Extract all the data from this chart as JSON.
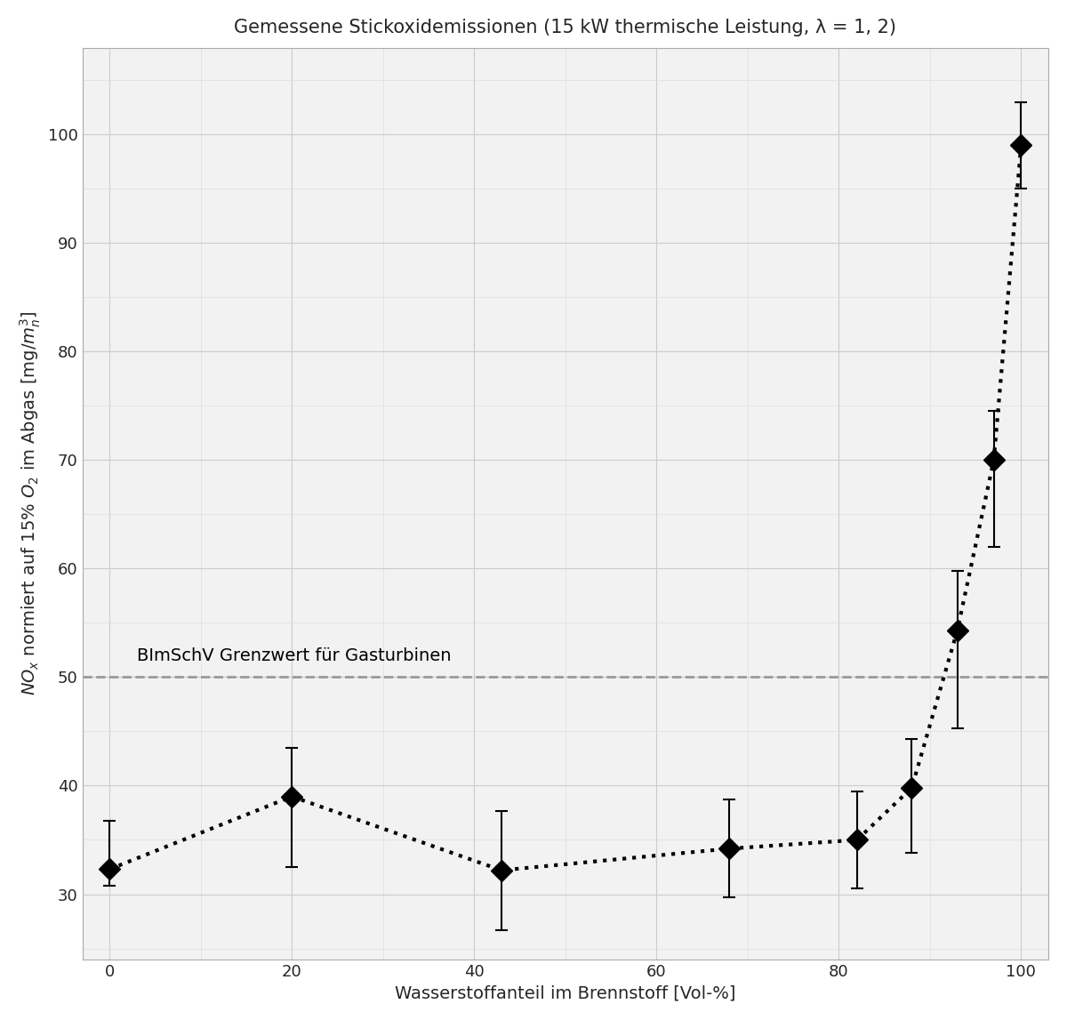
{
  "title": "Gemessene Stickoxidemissionen (15 kW thermische Leistung, λ = 1, 2)",
  "xlabel": "Wasserstoffanteil im Brennstoff [Vol-%]",
  "ylabel": "$NO_x$ normiert auf 15% $O_2$ im Abgas [mg/$m_n^3$]",
  "x": [
    0,
    20,
    43,
    68,
    82,
    88,
    93,
    97,
    100
  ],
  "y": [
    32.3,
    39.0,
    32.2,
    34.2,
    35.0,
    39.8,
    54.3,
    70.0,
    99.0
  ],
  "yerr_low": [
    1.5,
    6.5,
    5.5,
    4.5,
    4.5,
    6.0,
    9.0,
    8.0,
    4.0
  ],
  "yerr_high": [
    4.5,
    4.5,
    5.5,
    4.5,
    4.5,
    4.5,
    5.5,
    4.5,
    4.0
  ],
  "grenzwert_y": 50,
  "grenzwert_label": "BImSchV Grenzwert für Gasturbinen",
  "grenzwert_color": "#999999",
  "marker_color": "black",
  "line_color": "black",
  "xlim": [
    -3,
    103
  ],
  "ylim": [
    24,
    108
  ],
  "xticks": [
    0,
    20,
    40,
    60,
    80,
    100
  ],
  "yticks": [
    30,
    40,
    50,
    60,
    70,
    80,
    90,
    100
  ],
  "title_fontsize": 15,
  "label_fontsize": 14,
  "tick_fontsize": 13,
  "plot_bg_color": "#f2f2f2",
  "background_color": "#ffffff"
}
